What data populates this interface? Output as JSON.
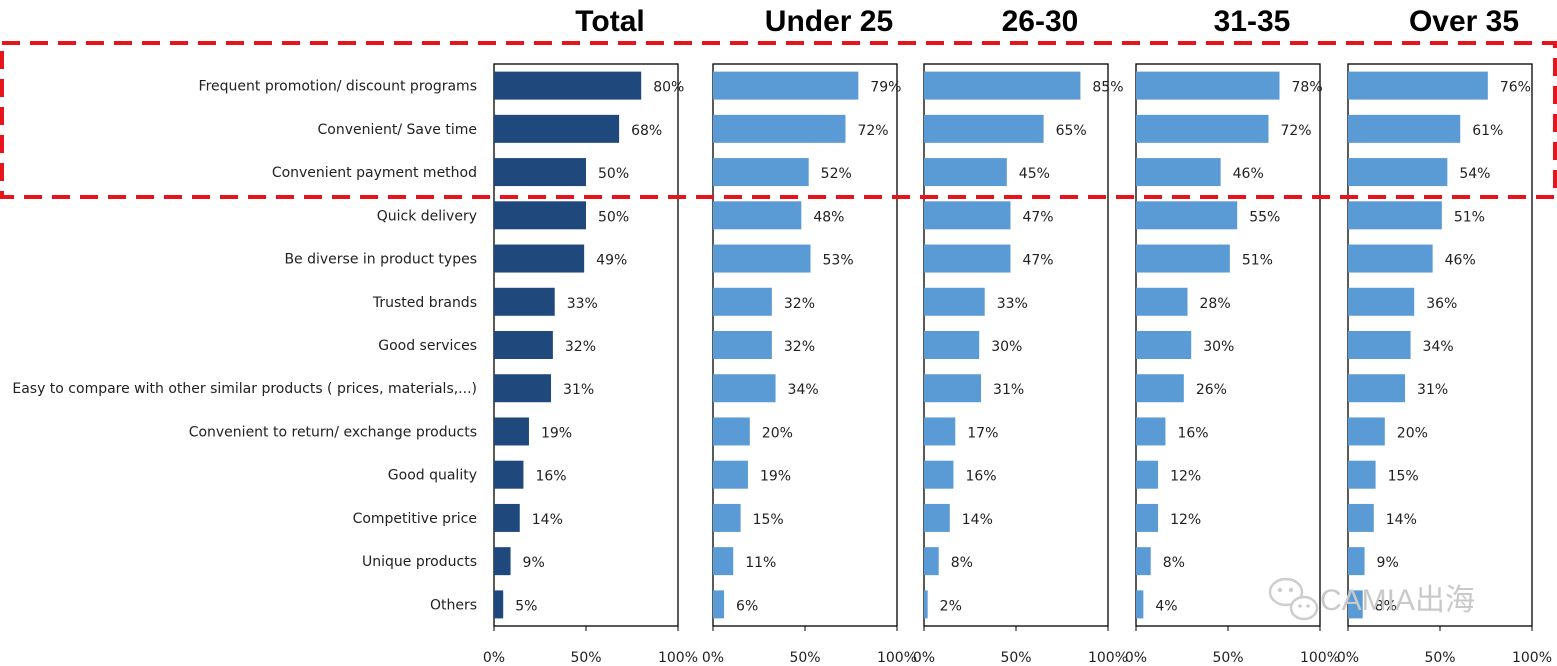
{
  "chart_data": {
    "type": "bar",
    "orientation": "horizontal",
    "categories": [
      "Frequent promotion/ discount programs",
      "Convenient/ Save time",
      "Convenient payment method",
      "Quick delivery",
      "Be diverse in product types",
      "Trusted brands",
      "Good services",
      "Easy to compare with other similar products ( prices, materials,...)",
      "Convenient to return/ exchange products",
      "Good quality",
      "Competitive price",
      "Unique products",
      "Others"
    ],
    "series": [
      {
        "name": "Total",
        "color": "#1f497d",
        "values": [
          80,
          68,
          50,
          50,
          49,
          33,
          32,
          31,
          19,
          16,
          14,
          9,
          5
        ]
      },
      {
        "name": "Under 25",
        "color": "#5b9bd5",
        "values": [
          79,
          72,
          52,
          48,
          53,
          32,
          32,
          34,
          20,
          19,
          15,
          11,
          6
        ]
      },
      {
        "name": "26-30",
        "color": "#5b9bd5",
        "values": [
          85,
          65,
          45,
          47,
          47,
          33,
          30,
          31,
          17,
          16,
          14,
          8,
          2
        ]
      },
      {
        "name": "31-35",
        "color": "#5b9bd5",
        "values": [
          78,
          72,
          46,
          55,
          51,
          28,
          30,
          26,
          16,
          12,
          12,
          8,
          4
        ]
      },
      {
        "name": "Over 35",
        "color": "#5b9bd5",
        "values": [
          76,
          61,
          54,
          51,
          46,
          36,
          34,
          31,
          20,
          15,
          14,
          9,
          8
        ]
      }
    ],
    "value_suffix": "%",
    "xlim": [
      0,
      100
    ],
    "xticks": [
      0,
      50,
      100
    ],
    "xtick_labels": [
      "0%",
      "50%",
      "100%"
    ],
    "highlight": {
      "first_category": 0,
      "last_category": 2,
      "style": "dashed",
      "color": "#e8141c"
    }
  },
  "watermark": {
    "text": "CAMIA出海",
    "icon": "wechat-icon"
  }
}
